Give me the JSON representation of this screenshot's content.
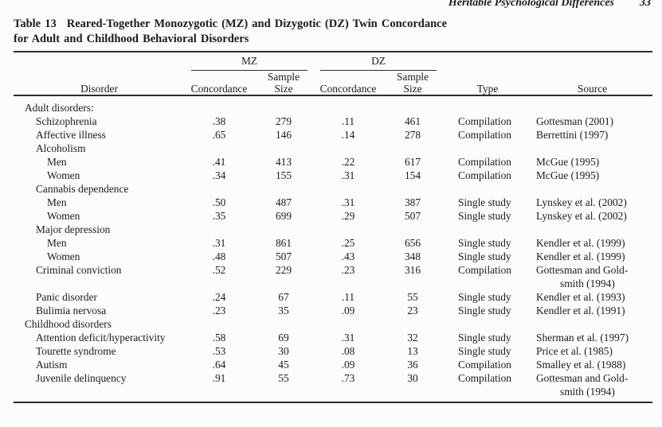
{
  "page": {
    "running_head": "Heritable Psychological Differences",
    "page_number": "33"
  },
  "colors": {
    "text": "#1b1b1b",
    "rule": "#2e2e2e",
    "background": "#fcfcfc"
  },
  "table": {
    "label": "Table 13",
    "title_line1": "Reared-Together Monozygotic (MZ) and Dizygotic (DZ) Twin Concordance",
    "title_line2": "for Adult and Childhood Behavioral Disorders",
    "spanners": [
      {
        "label": "MZ"
      },
      {
        "label": "DZ"
      }
    ],
    "headers": {
      "disorder": "Disorder",
      "concordance": "Concordance",
      "sample_size_line1": "Sample",
      "sample_size_line2": "Size",
      "type": "Type",
      "source": "Source"
    },
    "rows": [
      {
        "label": "Adult disorders:",
        "indent": 0
      },
      {
        "label": "Schizophrenia",
        "indent": 1,
        "mz_concordance": ".38",
        "mz_sample_size": "279",
        "dz_concordance": ".11",
        "dz_sample_size": "461",
        "type": "Compilation",
        "source": [
          "Gottesman (2001)"
        ]
      },
      {
        "label": "Affective illness",
        "indent": 1,
        "mz_concordance": ".65",
        "mz_sample_size": "146",
        "dz_concordance": ".14",
        "dz_sample_size": "278",
        "type": "Compilation",
        "source": [
          "Berrettini (1997)"
        ]
      },
      {
        "label": "Alcoholism",
        "indent": 1
      },
      {
        "label": "Men",
        "indent": 2,
        "mz_concordance": ".41",
        "mz_sample_size": "413",
        "dz_concordance": ".22",
        "dz_sample_size": "617",
        "type": "Compilation",
        "source": [
          "McGue (1995)"
        ]
      },
      {
        "label": "Women",
        "indent": 2,
        "mz_concordance": ".34",
        "mz_sample_size": "155",
        "dz_concordance": ".31",
        "dz_sample_size": "154",
        "type": "Compilation",
        "source": [
          "McGue (1995)"
        ]
      },
      {
        "label": "Cannabis dependence",
        "indent": 1
      },
      {
        "label": "Men",
        "indent": 2,
        "mz_concordance": ".50",
        "mz_sample_size": "487",
        "dz_concordance": ".31",
        "dz_sample_size": "387",
        "type": "Single study",
        "source": [
          "Lynskey et al. (2002)"
        ]
      },
      {
        "label": "Women",
        "indent": 2,
        "mz_concordance": ".35",
        "mz_sample_size": "699",
        "dz_concordance": ".29",
        "dz_sample_size": "507",
        "type": "Single study",
        "source": [
          "Lynskey et al. (2002)"
        ]
      },
      {
        "label": "Major depression",
        "indent": 1
      },
      {
        "label": "Men",
        "indent": 2,
        "mz_concordance": ".31",
        "mz_sample_size": "861",
        "dz_concordance": ".25",
        "dz_sample_size": "656",
        "type": "Single study",
        "source": [
          "Kendler et al. (1999)"
        ]
      },
      {
        "label": "Women",
        "indent": 2,
        "mz_concordance": ".48",
        "mz_sample_size": "507",
        "dz_concordance": ".43",
        "dz_sample_size": "348",
        "type": "Single study",
        "source": [
          "Kendler et al. (1999)"
        ]
      },
      {
        "label": "Criminal conviction",
        "indent": 1,
        "mz_concordance": ".52",
        "mz_sample_size": "229",
        "dz_concordance": ".23",
        "dz_sample_size": "316",
        "type": "Compilation",
        "source": [
          "Gottesman and Gold-",
          "smith (1994)"
        ]
      },
      {
        "label": "Panic disorder",
        "indent": 1,
        "mz_concordance": ".24",
        "mz_sample_size": "67",
        "dz_concordance": ".11",
        "dz_sample_size": "55",
        "type": "Single study",
        "source": [
          "Kendler et al. (1993)"
        ]
      },
      {
        "label": "Bulimia nervosa",
        "indent": 1,
        "mz_concordance": ".23",
        "mz_sample_size": "35",
        "dz_concordance": ".09",
        "dz_sample_size": "23",
        "type": "Single study",
        "source": [
          "Kendler et al. (1991)"
        ]
      },
      {
        "label": "Childhood disorders",
        "indent": 0
      },
      {
        "label": "Attention deficit/hyperactivity",
        "indent": 1,
        "mz_concordance": ".58",
        "mz_sample_size": "69",
        "dz_concordance": ".31",
        "dz_sample_size": "32",
        "type": "Single study",
        "source": [
          "Sherman et al. (1997)"
        ]
      },
      {
        "label": "Tourette syndrome",
        "indent": 1,
        "mz_concordance": ".53",
        "mz_sample_size": "30",
        "dz_concordance": ".08",
        "dz_sample_size": "13",
        "type": "Single study",
        "source": [
          "Price et al. (1985)"
        ]
      },
      {
        "label": "Autism",
        "indent": 1,
        "mz_concordance": ".64",
        "mz_sample_size": "45",
        "dz_concordance": ".09",
        "dz_sample_size": "36",
        "type": "Compilation",
        "source": [
          "Smalley et al. (1988)"
        ]
      },
      {
        "label": "Juvenile delinquency",
        "indent": 1,
        "mz_concordance": ".91",
        "mz_sample_size": "55",
        "dz_concordance": ".73",
        "dz_sample_size": "30",
        "type": "Compilation",
        "source": [
          "Gottesman and Gold-",
          "smith (1994)"
        ]
      }
    ]
  }
}
